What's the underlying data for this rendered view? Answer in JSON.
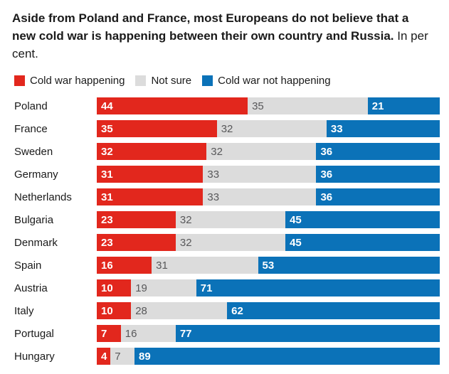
{
  "title": {
    "bold": "Aside from Poland and France, most Europeans do not believe that a new cold war is happening between their own country and Russia.",
    "suffix": "In per cent."
  },
  "colors": {
    "red": "#e2271d",
    "gray": "#dcdcdc",
    "blue": "#0b72b8",
    "gray_value_text": "#58585a",
    "white_value_text": "#ffffff",
    "text": "#1a1a1a"
  },
  "chart_data": {
    "type": "bar",
    "orientation": "horizontal",
    "stacked": true,
    "unit": "per cent",
    "xlim": [
      0,
      100
    ],
    "grid": false,
    "legend_position": "top",
    "categories": [
      "Poland",
      "France",
      "Sweden",
      "Germany",
      "Netherlands",
      "Bulgaria",
      "Denmark",
      "Spain",
      "Austria",
      "Italy",
      "Portugal",
      "Hungary"
    ],
    "series": [
      {
        "name": "Cold war happening",
        "color": "#e2271d",
        "values": [
          44,
          35,
          32,
          31,
          31,
          23,
          23,
          16,
          10,
          10,
          7,
          4
        ]
      },
      {
        "name": "Not sure",
        "color": "#dcdcdc",
        "values": [
          35,
          32,
          32,
          33,
          33,
          32,
          32,
          31,
          19,
          28,
          16,
          7
        ]
      },
      {
        "name": "Cold war not happening",
        "color": "#0b72b8",
        "values": [
          21,
          33,
          36,
          36,
          36,
          45,
          45,
          53,
          71,
          62,
          77,
          89
        ]
      }
    ]
  }
}
